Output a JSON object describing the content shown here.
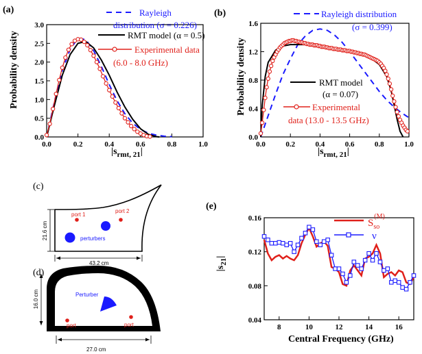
{
  "chart_data": [
    {
      "panel": "(a)",
      "type": "line",
      "xlabel": "|s",
      "xlabel_sub": "rmt, 21",
      "xlabel_tail": "|",
      "ylabel": "Probability density",
      "xlim": [
        0.0,
        1.0
      ],
      "ylim": [
        0.0,
        3.0
      ],
      "xticks": [
        "0.0",
        "0.2",
        "0.4",
        "0.6",
        "0.8",
        "1.0"
      ],
      "yticks": [
        "0.0",
        "0.5",
        "1.0",
        "1.5",
        "2.0",
        "2.5",
        "3.0"
      ],
      "legend": [
        "Rayleigh",
        "distribution (σ = 0.226)",
        "RMT model (α = 0.5)",
        "Experimental data",
        "(6.0 - 8.0 GHz)"
      ],
      "series": [
        {
          "name": "Rayleigh distribution (σ = 0.226)",
          "style": "dashed",
          "color": "#1a1aff",
          "x": [
            0,
            0.05,
            0.1,
            0.15,
            0.2,
            0.25,
            0.3,
            0.35,
            0.4,
            0.45,
            0.5,
            0.55,
            0.6,
            0.65,
            0.7,
            0.75,
            0.8
          ],
          "y": [
            0,
            0.95,
            1.78,
            2.34,
            2.64,
            2.6,
            2.31,
            1.88,
            1.4,
            0.97,
            0.62,
            0.37,
            0.2,
            0.1,
            0.05,
            0.02,
            0.01
          ]
        },
        {
          "name": "RMT model (α = 0.5)",
          "style": "solid",
          "color": "#000000",
          "x": [
            0,
            0.05,
            0.1,
            0.15,
            0.2,
            0.25,
            0.3,
            0.35,
            0.4,
            0.45,
            0.5,
            0.55,
            0.6,
            0.65,
            0.7,
            0.72
          ],
          "y": [
            0,
            0.85,
            1.65,
            2.2,
            2.5,
            2.55,
            2.38,
            2.05,
            1.65,
            1.2,
            0.8,
            0.47,
            0.22,
            0.07,
            0.01,
            0
          ]
        },
        {
          "name": "Experimental data (6.0 - 8.0 GHz)",
          "style": "markers",
          "color": "#e0201a",
          "x": [
            0,
            0.02,
            0.04,
            0.06,
            0.08,
            0.1,
            0.12,
            0.14,
            0.16,
            0.18,
            0.2,
            0.22,
            0.24,
            0.26,
            0.28,
            0.3,
            0.32,
            0.34,
            0.36,
            0.38,
            0.4,
            0.42,
            0.44,
            0.46,
            0.48,
            0.5,
            0.52,
            0.54,
            0.56,
            0.58,
            0.6,
            0.62,
            0.64,
            0.66
          ],
          "y": [
            0.05,
            0.35,
            0.75,
            1.15,
            1.52,
            1.85,
            2.12,
            2.33,
            2.48,
            2.57,
            2.61,
            2.6,
            2.54,
            2.45,
            2.32,
            2.17,
            2.0,
            1.82,
            1.62,
            1.43,
            1.25,
            1.08,
            0.92,
            0.77,
            0.63,
            0.5,
            0.39,
            0.29,
            0.21,
            0.14,
            0.09,
            0.05,
            0.02,
            0.01
          ]
        }
      ]
    },
    {
      "panel": "(b)",
      "type": "line",
      "xlabel": "|s",
      "xlabel_sub": "rmt, 21",
      "xlabel_tail": "|",
      "ylabel": "Probability density",
      "xlim": [
        0.0,
        1.0
      ],
      "ylim": [
        0.0,
        1.6
      ],
      "xticks": [
        "0.0",
        "0.2",
        "0.4",
        "0.6",
        "0.8",
        "1.0"
      ],
      "yticks": [
        "0.0",
        "0.4",
        "0.8",
        "1.2",
        "1.6"
      ],
      "legend": [
        "Rayleigh distribution",
        "(σ = 0.399)",
        "RMT model",
        "(α = 0.07)",
        "Experimental",
        "data (13.0 - 13.5 GHz)"
      ],
      "series": [
        {
          "name": "Rayleigh distribution (σ = 0.399)",
          "style": "dashed",
          "color": "#1a1aff",
          "x": [
            0,
            0.05,
            0.1,
            0.15,
            0.2,
            0.25,
            0.3,
            0.35,
            0.4,
            0.45,
            0.5,
            0.55,
            0.6,
            0.65,
            0.7,
            0.75,
            0.8,
            0.85,
            0.9,
            0.95,
            1.0
          ],
          "y": [
            0,
            0.3,
            0.6,
            0.88,
            1.1,
            1.3,
            1.42,
            1.5,
            1.52,
            1.5,
            1.43,
            1.33,
            1.2,
            1.06,
            0.92,
            0.78,
            0.64,
            0.52,
            0.42,
            0.34,
            0.27
          ]
        },
        {
          "name": "RMT model (α = 0.07)",
          "style": "solid",
          "color": "#000000",
          "x": [
            0,
            0.01,
            0.03,
            0.05,
            0.1,
            0.15,
            0.2,
            0.3,
            0.4,
            0.5,
            0.6,
            0.7,
            0.75,
            0.8,
            0.85,
            0.88,
            0.9,
            0.92,
            0.94,
            0.96
          ],
          "y": [
            0,
            0.45,
            0.85,
            1.05,
            1.22,
            1.28,
            1.3,
            1.3,
            1.27,
            1.24,
            1.2,
            1.15,
            1.1,
            1.02,
            0.85,
            0.65,
            0.45,
            0.25,
            0.08,
            0
          ]
        },
        {
          "name": "Experimental data (13.0 - 13.5 GHz)",
          "style": "markers",
          "color": "#e0201a",
          "x": [
            0,
            0.01,
            0.02,
            0.03,
            0.04,
            0.05,
            0.06,
            0.07,
            0.08,
            0.09,
            0.1,
            0.11,
            0.12,
            0.13,
            0.14,
            0.15,
            0.16,
            0.17,
            0.18,
            0.19,
            0.2,
            0.21,
            0.22,
            0.23,
            0.24,
            0.25,
            0.26,
            0.27,
            0.28,
            0.29,
            0.3,
            0.31,
            0.32,
            0.33,
            0.34,
            0.35,
            0.36,
            0.37,
            0.38,
            0.39,
            0.4,
            0.41,
            0.42,
            0.43,
            0.44,
            0.45,
            0.46,
            0.47,
            0.48,
            0.49,
            0.5,
            0.51,
            0.52,
            0.53,
            0.54,
            0.55,
            0.56,
            0.57,
            0.58,
            0.59,
            0.6,
            0.61,
            0.62,
            0.63,
            0.64,
            0.65,
            0.66,
            0.67,
            0.68,
            0.69,
            0.7,
            0.71,
            0.72,
            0.73,
            0.74,
            0.75,
            0.76,
            0.77,
            0.78,
            0.79,
            0.8,
            0.81,
            0.82,
            0.83,
            0.84,
            0.85,
            0.86,
            0.87,
            0.88,
            0.89,
            0.9,
            0.91,
            0.92,
            0.93,
            0.94,
            0.95,
            0.96,
            0.97,
            0.98,
            0.99
          ],
          "y": [
            0.05,
            0.2,
            0.38,
            0.55,
            0.7,
            0.82,
            0.92,
            1.0,
            1.07,
            1.12,
            1.16,
            1.2,
            1.23,
            1.26,
            1.28,
            1.3,
            1.32,
            1.33,
            1.34,
            1.35,
            1.35,
            1.36,
            1.36,
            1.35,
            1.35,
            1.34,
            1.34,
            1.33,
            1.33,
            1.32,
            1.32,
            1.31,
            1.31,
            1.3,
            1.3,
            1.3,
            1.29,
            1.29,
            1.29,
            1.28,
            1.28,
            1.27,
            1.27,
            1.27,
            1.26,
            1.26,
            1.25,
            1.25,
            1.25,
            1.24,
            1.24,
            1.24,
            1.23,
            1.23,
            1.23,
            1.22,
            1.22,
            1.22,
            1.21,
            1.21,
            1.21,
            1.2,
            1.2,
            1.19,
            1.19,
            1.18,
            1.18,
            1.17,
            1.17,
            1.16,
            1.16,
            1.15,
            1.14,
            1.13,
            1.12,
            1.11,
            1.1,
            1.09,
            1.08,
            1.07,
            1.05,
            1.03,
            1.0,
            0.97,
            0.93,
            0.88,
            0.82,
            0.75,
            0.67,
            0.58,
            0.5,
            0.42,
            0.35,
            0.29,
            0.24,
            0.2,
            0.16,
            0.13,
            0.1,
            0.08
          ]
        }
      ]
    },
    {
      "panel": "(e)",
      "type": "line",
      "xlabel": "Central Frequency (GHz)",
      "ylabel": "|s",
      "ylabel_sub": "21",
      "ylabel_tail": "|",
      "xlim": [
        7,
        17
      ],
      "ylim": [
        0.04,
        0.16
      ],
      "xticks": [
        "8",
        "10",
        "12",
        "14",
        "16"
      ],
      "yticks": [
        "0.04",
        "0.08",
        "0.12",
        "0.16"
      ],
      "legend": [
        "S",
        "so",
        "(M)",
        "ν"
      ],
      "series": [
        {
          "name": "S_so^(M)",
          "style": "solid",
          "color": "#e0201a",
          "x": [
            7,
            7.25,
            7.5,
            7.75,
            8,
            8.25,
            8.5,
            8.75,
            9,
            9.25,
            9.5,
            9.75,
            10,
            10.25,
            10.5,
            10.75,
            11,
            11.25,
            11.5,
            11.75,
            12,
            12.25,
            12.5,
            12.75,
            13,
            13.25,
            13.5,
            13.75,
            14,
            14.25,
            14.5,
            14.75,
            15,
            15.25,
            15.5,
            15.75,
            16,
            16.25,
            16.5,
            16.75,
            17
          ],
          "y": [
            0.134,
            0.118,
            0.11,
            0.114,
            0.116,
            0.112,
            0.115,
            0.112,
            0.11,
            0.116,
            0.13,
            0.14,
            0.148,
            0.138,
            0.126,
            0.13,
            0.132,
            0.127,
            0.102,
            0.1,
            0.096,
            0.082,
            0.08,
            0.098,
            0.104,
            0.098,
            0.092,
            0.112,
            0.114,
            0.118,
            0.128,
            0.118,
            0.09,
            0.094,
            0.096,
            0.092,
            0.098,
            0.096,
            0.084,
            0.082,
            0.09
          ]
        },
        {
          "name": "ν",
          "style": "markers",
          "color": "#1a1aff",
          "x": [
            7,
            7.25,
            7.5,
            7.75,
            8,
            8.25,
            8.5,
            8.75,
            9,
            9.25,
            9.5,
            9.75,
            10,
            10.25,
            10.5,
            10.75,
            11,
            11.25,
            11.5,
            11.75,
            12,
            12.25,
            12.5,
            12.75,
            13,
            13.25,
            13.5,
            13.75,
            14,
            14.25,
            14.5,
            14.75,
            15,
            15.25,
            15.5,
            15.75,
            16,
            16.25,
            16.5,
            16.75,
            17
          ],
          "y": [
            0.138,
            0.134,
            0.13,
            0.13,
            0.131,
            0.13,
            0.128,
            0.13,
            0.12,
            0.128,
            0.136,
            0.142,
            0.149,
            0.146,
            0.132,
            0.128,
            0.132,
            0.134,
            0.116,
            0.1,
            0.1,
            0.094,
            0.084,
            0.092,
            0.108,
            0.104,
            0.1,
            0.11,
            0.118,
            0.11,
            0.118,
            0.108,
            0.098,
            0.1,
            0.084,
            0.086,
            0.084,
            0.078,
            0.076,
            0.084,
            0.092
          ]
        }
      ]
    }
  ],
  "schematics": {
    "c": {
      "panel": "(c)",
      "width": "43.2 cm",
      "height": "21.6 cm",
      "port_labels": [
        "port 1",
        "port 2"
      ],
      "perturber_label": "perturbers",
      "colors": {
        "port": "#e0201a",
        "perturber": "#1a1aff"
      }
    },
    "d": {
      "panel": "(d)",
      "width": "27.0 cm",
      "height": "16.0 cm",
      "port_labels": [
        "port",
        "port"
      ],
      "perturber_label": "Perturber",
      "colors": {
        "port": "#e0201a",
        "perturber": "#1a1aff"
      }
    }
  }
}
